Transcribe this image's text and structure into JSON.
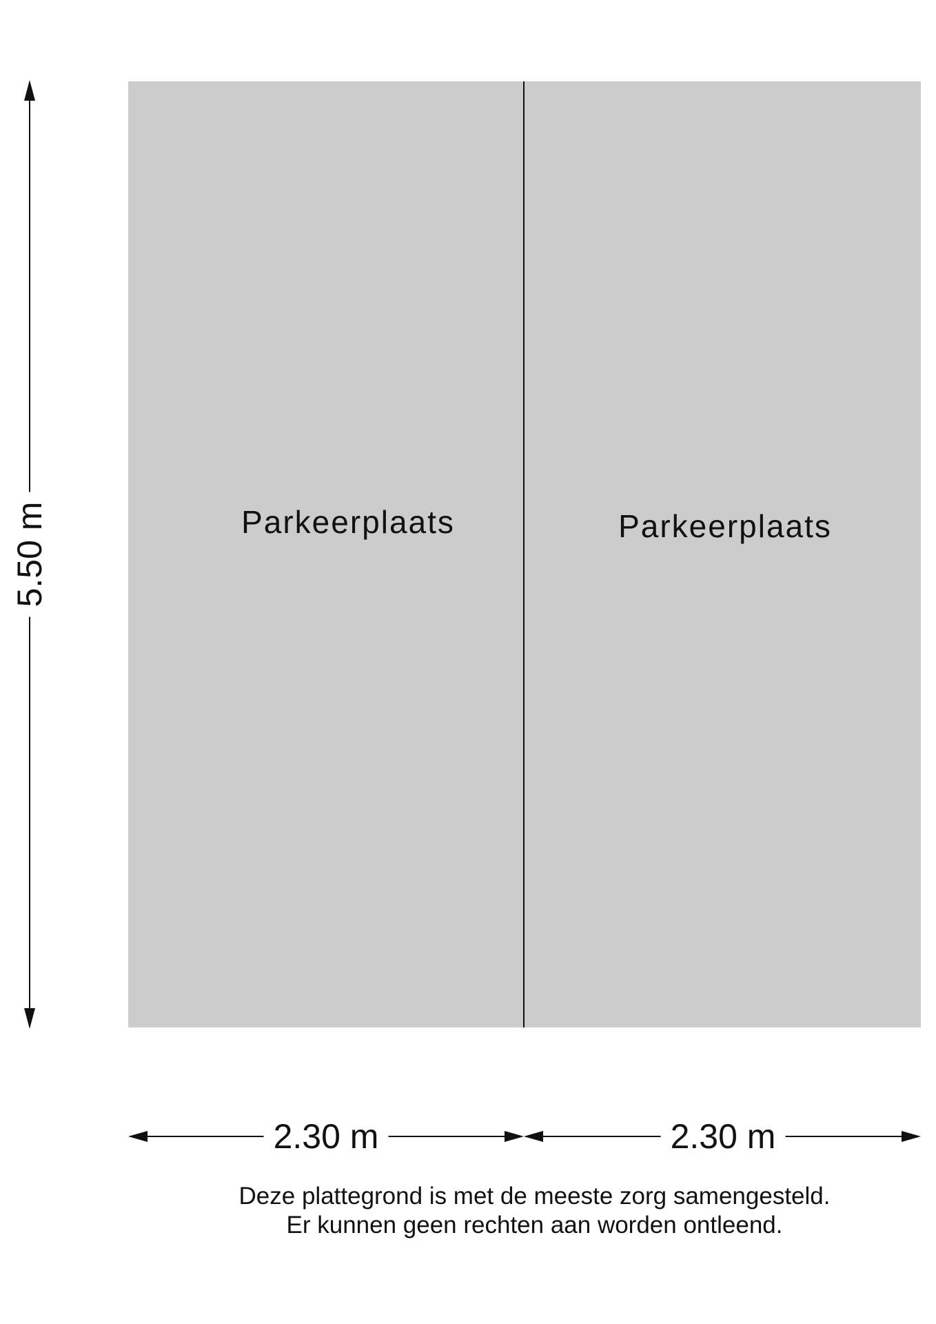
{
  "floorplan": {
    "rooms": [
      {
        "label": "Parkeerplaats"
      },
      {
        "label": "Parkeerplaats"
      }
    ],
    "dimensions": {
      "height": "5.50 m",
      "width_left": "2.30 m",
      "width_right": "2.30 m"
    },
    "colors": {
      "room_fill": "#cccccc",
      "line": "#111111"
    }
  },
  "disclaimer": {
    "line1": "Deze plattegrond is met de meeste zorg samengesteld.",
    "line2": "Er kunnen geen rechten aan worden ontleend."
  }
}
